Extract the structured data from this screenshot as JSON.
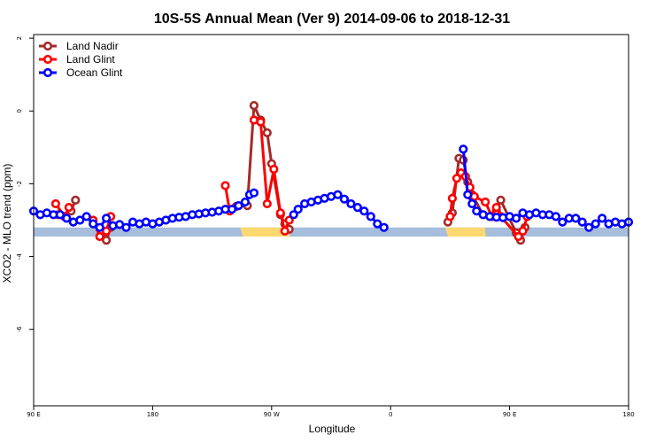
{
  "chart_data": {
    "type": "line",
    "title": "10S-5S Annual Mean (Ver 9)   2014-09-06 to 2018-12-31",
    "xlabel": "Longitude",
    "ylabel": "XCO2 - MLO trend (ppm)",
    "xlim": [
      -90,
      180
    ],
    "ylim": [
      -8.1,
      2.1
    ],
    "xticks": [
      {
        "value": -90,
        "label": "90 E"
      },
      {
        "value": -36,
        "label": "180"
      },
      {
        "value": 18,
        "label": "90 W"
      },
      {
        "value": 72,
        "label": "0"
      },
      {
        "value": 126,
        "label": "90 E"
      },
      {
        "value": 180,
        "label": "180"
      }
    ],
    "yticks": [
      {
        "value": 2,
        "label": "2"
      },
      {
        "value": 0,
        "label": "0"
      },
      {
        "value": -2,
        "label": "-2"
      },
      {
        "value": -4,
        "label": "-4"
      },
      {
        "value": -6,
        "label": "-6"
      }
    ],
    "grid": false,
    "legend_position": "top-left",
    "land_strip": {
      "y_range": [
        -3.45,
        -3.2
      ],
      "ocean_color": "#a6bddb",
      "land_color": "#fdd870",
      "land_x": [
        [
          5,
          25
        ],
        [
          98,
          114
        ]
      ]
    },
    "series": [
      {
        "name": "Land Nadir",
        "color": "#a52a2a",
        "points": [
          [
            -79,
            -2.85
          ],
          [
            -76,
            -2.9
          ],
          [
            -73,
            -2.75
          ],
          [
            -71,
            -2.45
          ],
          [
            -59,
            -3.35
          ],
          [
            -57,
            -3.55
          ],
          [
            -55,
            -3.2
          ],
          [
            2,
            -2.62
          ],
          [
            7,
            -2.6
          ],
          [
            10,
            0.15
          ],
          [
            13,
            -0.25
          ],
          [
            16,
            -0.6
          ],
          [
            18,
            -1.45
          ],
          [
            22,
            -2.85
          ],
          [
            24,
            -3.1
          ],
          [
            26,
            -3.25
          ],
          [
            98,
            -3.05
          ],
          [
            100,
            -2.8
          ],
          [
            103,
            -1.3
          ],
          [
            105,
            -1.35
          ],
          [
            107,
            -1.95
          ],
          [
            109,
            -2.3
          ],
          [
            114,
            -2.85
          ],
          [
            118,
            -2.9
          ],
          [
            120,
            -2.75
          ],
          [
            122,
            -2.45
          ],
          [
            129,
            -3.35
          ],
          [
            131,
            -3.55
          ],
          [
            133,
            -3.2
          ]
        ]
      },
      {
        "name": "Land Glint",
        "color": "#ff0000",
        "points": [
          [
            -80,
            -2.55
          ],
          [
            -76,
            -2.9
          ],
          [
            -74,
            -2.65
          ],
          [
            -63,
            -3.0
          ],
          [
            -60,
            -3.45
          ],
          [
            -57,
            -3.3
          ],
          [
            -55,
            -2.9
          ],
          [
            -3,
            -2.05
          ],
          [
            -1,
            -2.75
          ],
          [
            10,
            -0.25
          ],
          [
            13,
            -0.3
          ],
          [
            16,
            -2.55
          ],
          [
            19,
            -1.6
          ],
          [
            22,
            -2.8
          ],
          [
            24,
            -3.3
          ],
          [
            26,
            -3.0
          ],
          [
            99,
            -2.9
          ],
          [
            100,
            -2.4
          ],
          [
            102,
            -1.85
          ],
          [
            104,
            -1.7
          ],
          [
            106,
            -1.8
          ],
          [
            108,
            -2.1
          ],
          [
            110,
            -2.35
          ],
          [
            115,
            -2.5
          ],
          [
            118,
            -2.9
          ],
          [
            120,
            -2.65
          ],
          [
            122,
            -2.9
          ],
          [
            130,
            -3.45
          ],
          [
            132,
            -3.3
          ],
          [
            134,
            -2.9
          ]
        ]
      },
      {
        "name": "Ocean Glint",
        "color": "#0000ff",
        "points": [
          [
            -90,
            -2.75
          ],
          [
            -87,
            -2.85
          ],
          [
            -84,
            -2.8
          ],
          [
            -81,
            -2.85
          ],
          [
            -78,
            -2.85
          ],
          [
            -75,
            -2.95
          ],
          [
            -72,
            -3.05
          ],
          [
            -69,
            -3.0
          ],
          [
            -66,
            -2.9
          ],
          [
            -63,
            -3.1
          ],
          [
            -60,
            -3.2
          ],
          [
            -57,
            -2.95
          ],
          [
            -54,
            -3.15
          ],
          [
            -51,
            -3.12
          ],
          [
            -48,
            -3.2
          ],
          [
            -45,
            -3.05
          ],
          [
            -42,
            -3.1
          ],
          [
            -39,
            -3.05
          ],
          [
            -36,
            -3.1
          ],
          [
            -33,
            -3.05
          ],
          [
            -30,
            -3.0
          ],
          [
            -27,
            -2.95
          ],
          [
            -24,
            -2.92
          ],
          [
            -21,
            -2.9
          ],
          [
            -18,
            -2.85
          ],
          [
            -15,
            -2.83
          ],
          [
            -12,
            -2.8
          ],
          [
            -9,
            -2.78
          ],
          [
            -6,
            -2.75
          ],
          [
            -3,
            -2.7
          ],
          [
            0,
            -2.7
          ],
          [
            3,
            -2.6
          ],
          [
            6,
            -2.5
          ],
          [
            8,
            -2.3
          ],
          [
            10,
            -2.25
          ],
          [
            28,
            -2.85
          ],
          [
            30,
            -2.7
          ],
          [
            33,
            -2.55
          ],
          [
            36,
            -2.5
          ],
          [
            39,
            -2.45
          ],
          [
            42,
            -2.4
          ],
          [
            45,
            -2.35
          ],
          [
            48,
            -2.3
          ],
          [
            51,
            -2.42
          ],
          [
            54,
            -2.55
          ],
          [
            57,
            -2.65
          ],
          [
            60,
            -2.75
          ],
          [
            63,
            -2.9
          ],
          [
            66,
            -3.1
          ],
          [
            69,
            -3.2
          ],
          [
            105,
            -1.05
          ],
          [
            107,
            -2.3
          ],
          [
            109,
            -2.55
          ],
          [
            111,
            -2.75
          ],
          [
            114,
            -2.85
          ],
          [
            117,
            -2.9
          ],
          [
            120,
            -2.92
          ],
          [
            123,
            -2.93
          ],
          [
            126,
            -2.9
          ],
          [
            129,
            -2.95
          ],
          [
            132,
            -2.8
          ],
          [
            135,
            -2.85
          ],
          [
            138,
            -2.8
          ],
          [
            141,
            -2.85
          ],
          [
            144,
            -2.85
          ],
          [
            147,
            -2.9
          ],
          [
            150,
            -3.05
          ],
          [
            153,
            -2.95
          ],
          [
            156,
            -2.95
          ],
          [
            159,
            -3.05
          ],
          [
            162,
            -3.2
          ],
          [
            165,
            -3.1
          ],
          [
            168,
            -2.95
          ],
          [
            171,
            -3.1
          ],
          [
            174,
            -3.05
          ],
          [
            177,
            -3.1
          ],
          [
            180,
            -3.05
          ]
        ]
      }
    ]
  }
}
